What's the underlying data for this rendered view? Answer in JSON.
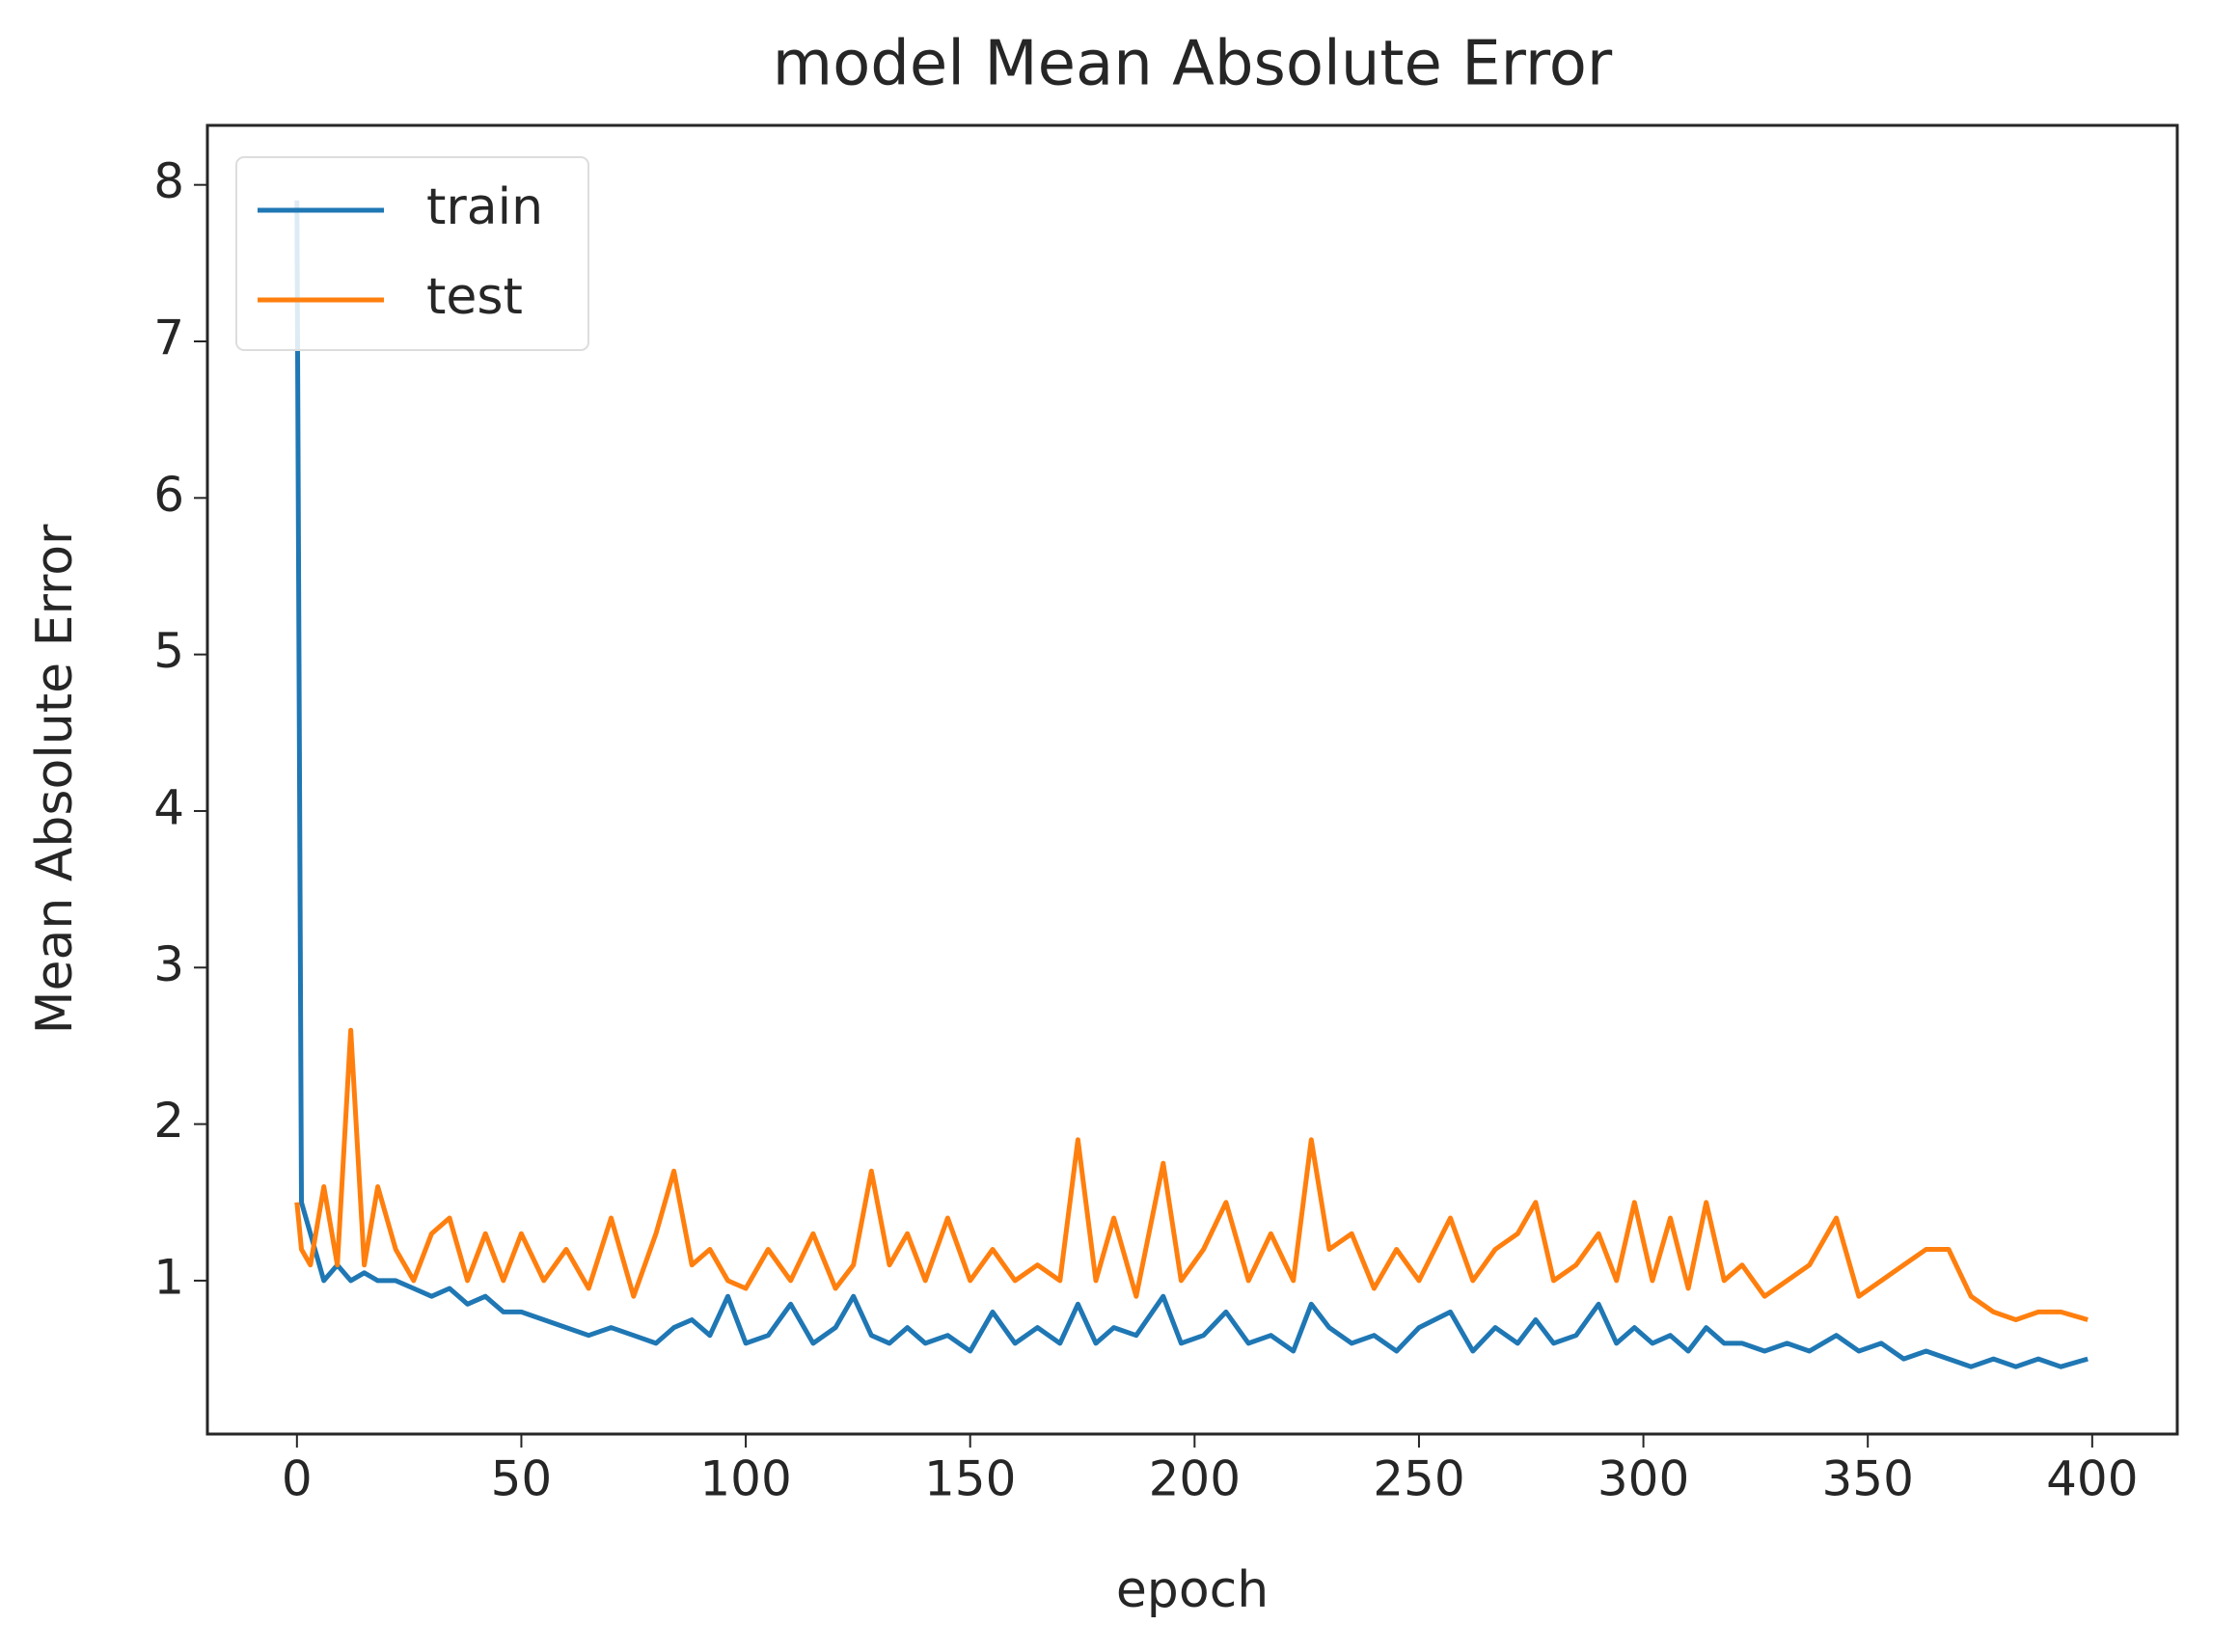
{
  "chart_data": {
    "type": "line",
    "title": "model Mean Absolute Error",
    "xlabel": "epoch",
    "ylabel": "Mean Absolute Error",
    "x": [
      0,
      1,
      3,
      6,
      9,
      12,
      15,
      18,
      22,
      26,
      30,
      34,
      38,
      42,
      46,
      50,
      55,
      60,
      65,
      70,
      75,
      80,
      84,
      88,
      92,
      96,
      100,
      105,
      110,
      115,
      120,
      124,
      128,
      132,
      136,
      140,
      145,
      150,
      155,
      160,
      165,
      170,
      174,
      178,
      182,
      187,
      193,
      197,
      202,
      207,
      212,
      217,
      222,
      226,
      230,
      235,
      240,
      245,
      250,
      257,
      262,
      267,
      272,
      276,
      280,
      285,
      290,
      294,
      298,
      302,
      306,
      310,
      314,
      318,
      322,
      327,
      332,
      337,
      343,
      348,
      353,
      358,
      363,
      368,
      373,
      378,
      383,
      388,
      393,
      399
    ],
    "series": [
      {
        "name": "train",
        "color": "#1f77b4",
        "values": [
          7.9,
          1.5,
          1.3,
          1.0,
          1.1,
          1.0,
          1.05,
          1.0,
          1.0,
          0.95,
          0.9,
          0.95,
          0.85,
          0.9,
          0.8,
          0.8,
          0.75,
          0.7,
          0.65,
          0.7,
          0.65,
          0.6,
          0.7,
          0.75,
          0.65,
          0.9,
          0.6,
          0.65,
          0.85,
          0.6,
          0.7,
          0.9,
          0.65,
          0.6,
          0.7,
          0.6,
          0.65,
          0.55,
          0.8,
          0.6,
          0.7,
          0.6,
          0.85,
          0.6,
          0.7,
          0.65,
          0.9,
          0.6,
          0.65,
          0.8,
          0.6,
          0.65,
          0.55,
          0.85,
          0.7,
          0.6,
          0.65,
          0.55,
          0.7,
          0.8,
          0.55,
          0.7,
          0.6,
          0.75,
          0.6,
          0.65,
          0.85,
          0.6,
          0.7,
          0.6,
          0.65,
          0.55,
          0.7,
          0.6,
          0.6,
          0.55,
          0.6,
          0.55,
          0.65,
          0.55,
          0.6,
          0.5,
          0.55,
          0.5,
          0.45,
          0.5,
          0.45,
          0.5,
          0.45,
          0.5
        ]
      },
      {
        "name": "test",
        "color": "#ff7f0e",
        "values": [
          1.5,
          1.2,
          1.1,
          1.6,
          1.1,
          2.6,
          1.1,
          1.6,
          1.2,
          1.0,
          1.3,
          1.4,
          1.0,
          1.3,
          1.0,
          1.3,
          1.0,
          1.2,
          0.95,
          1.4,
          0.9,
          1.3,
          1.7,
          1.1,
          1.2,
          1.0,
          0.95,
          1.2,
          1.0,
          1.3,
          0.95,
          1.1,
          1.7,
          1.1,
          1.3,
          1.0,
          1.4,
          1.0,
          1.2,
          1.0,
          1.1,
          1.0,
          1.9,
          1.0,
          1.4,
          0.9,
          1.75,
          1.0,
          1.2,
          1.5,
          1.0,
          1.3,
          1.0,
          1.9,
          1.2,
          1.3,
          0.95,
          1.2,
          1.0,
          1.4,
          1.0,
          1.2,
          1.3,
          1.5,
          1.0,
          1.1,
          1.3,
          1.0,
          1.5,
          1.0,
          1.4,
          0.95,
          1.5,
          1.0,
          1.1,
          0.9,
          1.0,
          1.1,
          1.4,
          0.9,
          1.0,
          1.1,
          1.2,
          1.2,
          0.9,
          0.8,
          0.75,
          0.8,
          0.8,
          0.75
        ]
      }
    ],
    "xlim": [
      -19.95,
      418.95
    ],
    "xticks": [
      0,
      50,
      100,
      150,
      200,
      250,
      300,
      350,
      400
    ],
    "ylim": [
      0.02,
      8.38
    ],
    "yticks": [
      1,
      2,
      3,
      4,
      5,
      6,
      7,
      8
    ],
    "legend": "upper left"
  }
}
